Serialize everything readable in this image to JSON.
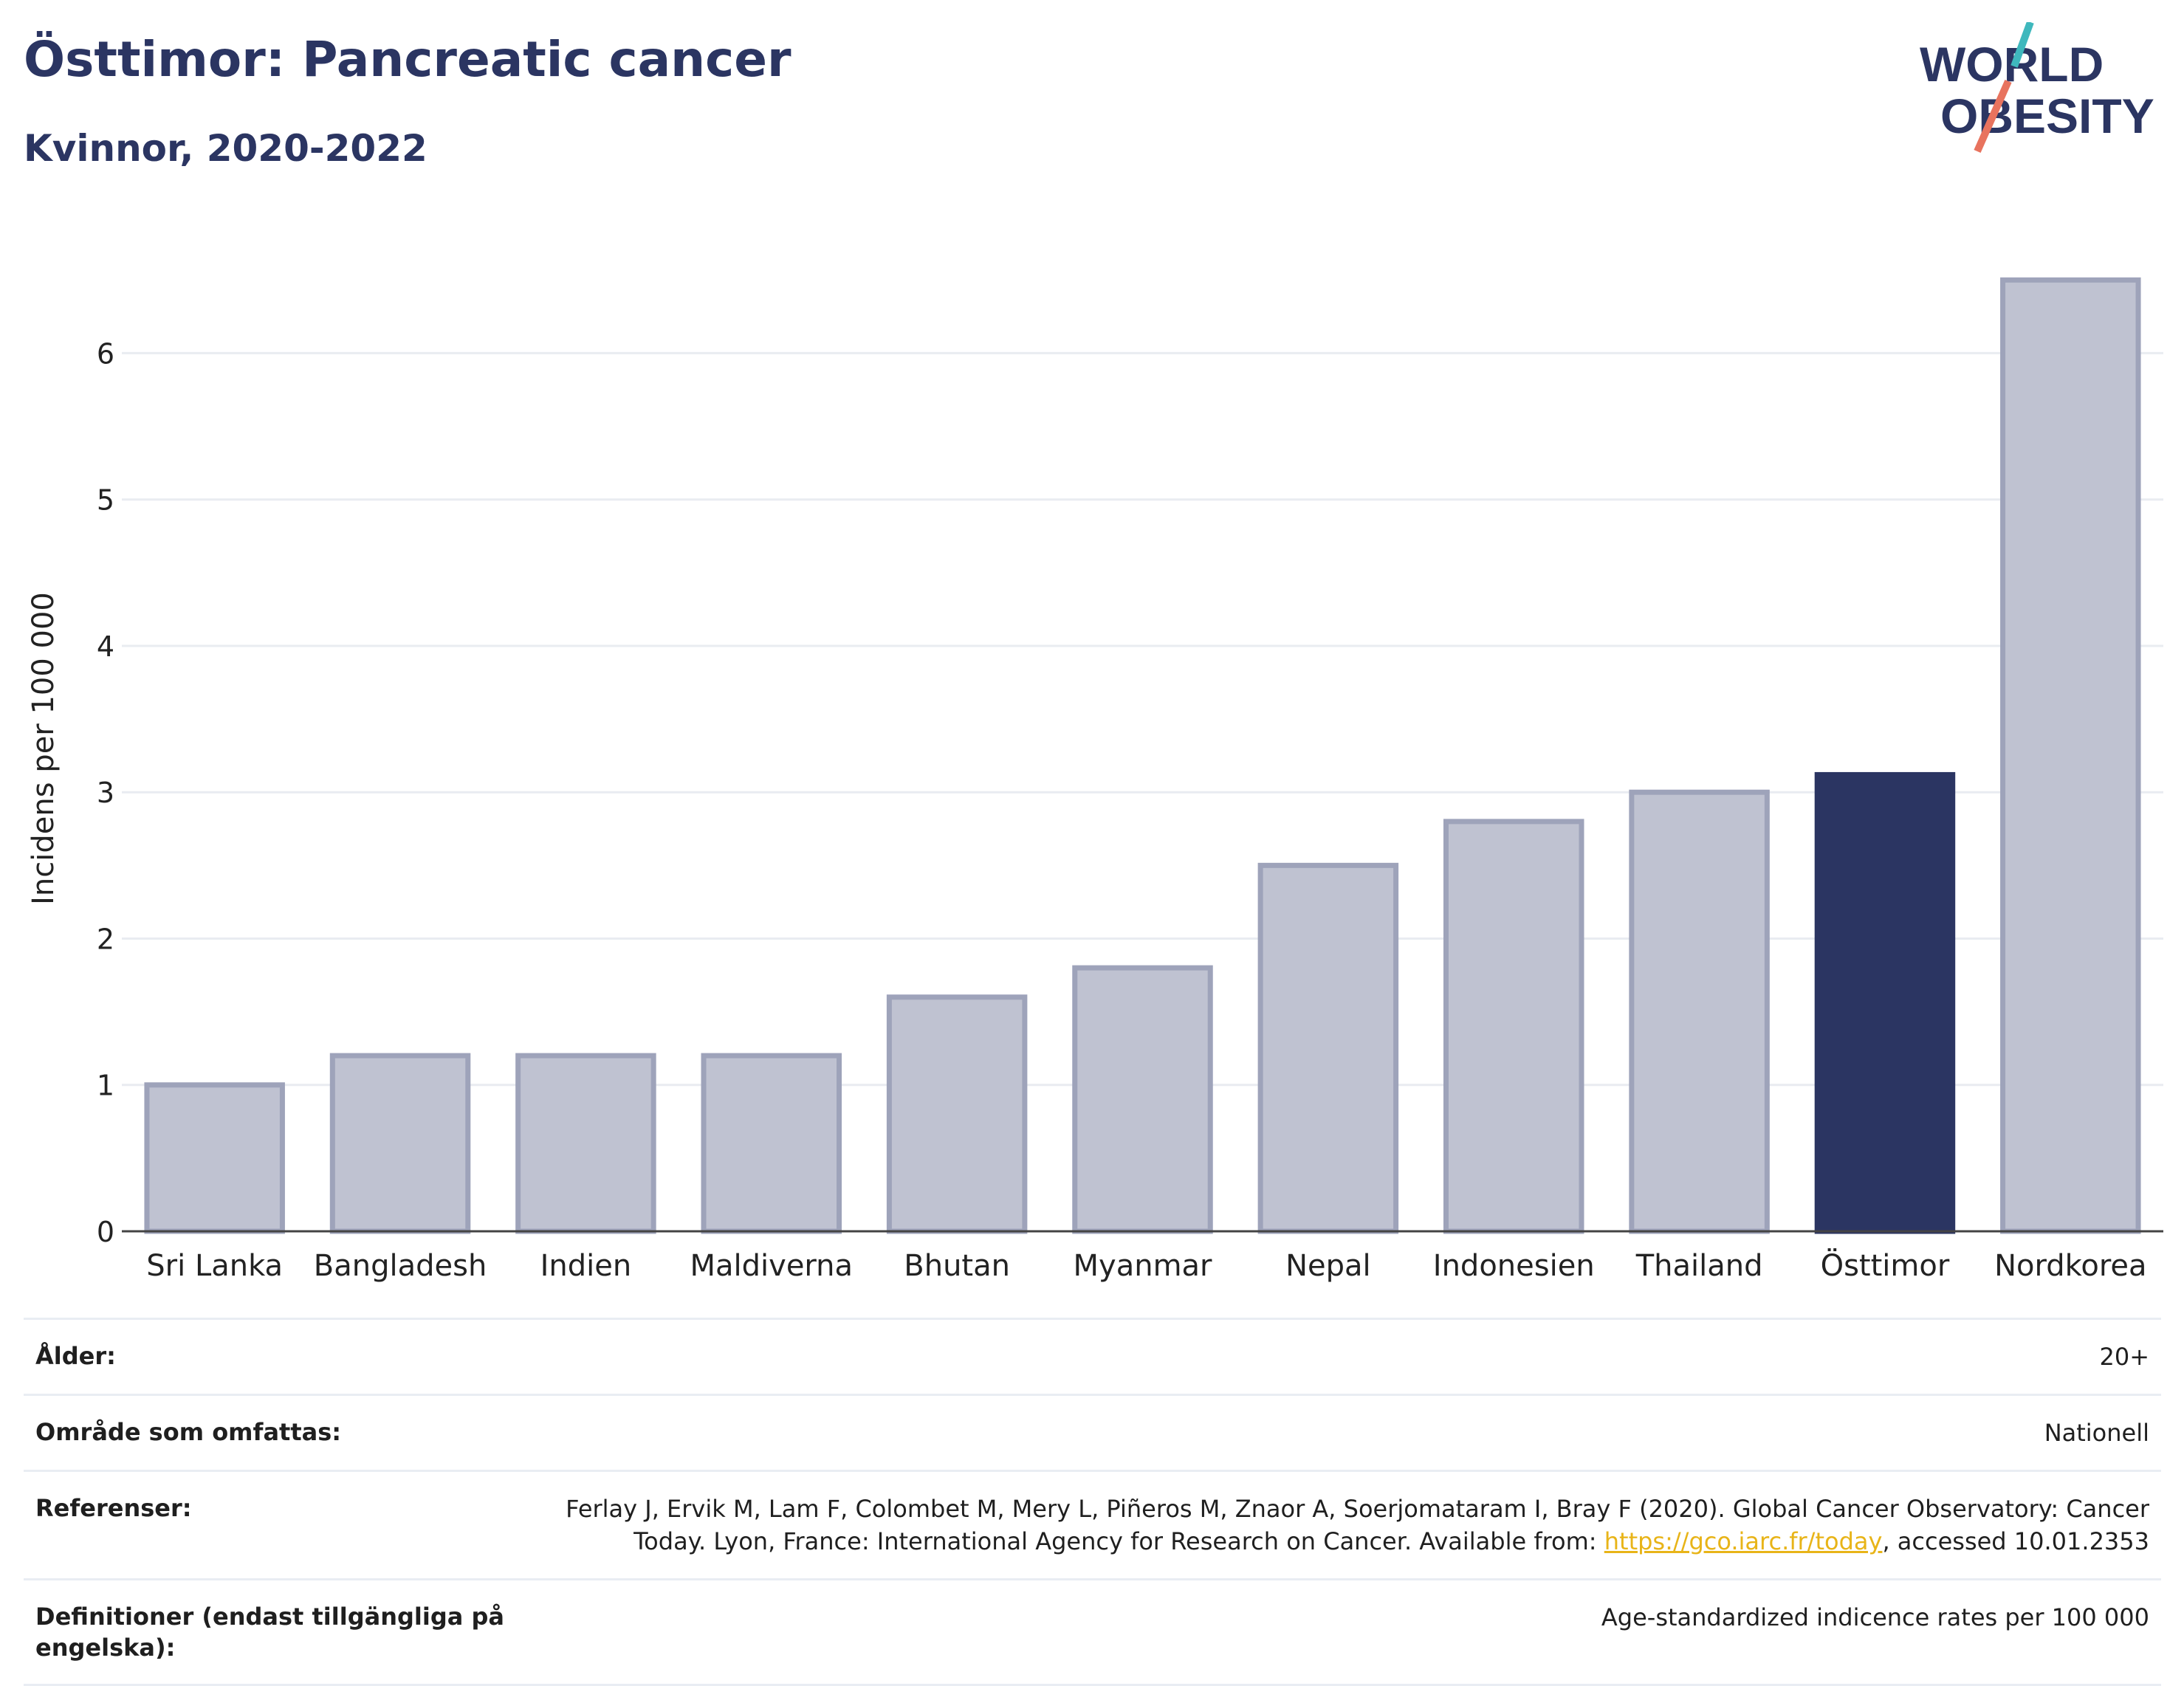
{
  "title": "Östtimor: Pancreatic cancer",
  "subtitle": "Kvinnor, 2020-2022",
  "logo": {
    "line1": "WORLD",
    "line2": "OBESITY"
  },
  "colors": {
    "highlight": "#2b3562",
    "bar_fill": "#bfc2d1",
    "bar_stroke": "#9ea3ba",
    "title": "#2b3562",
    "link": "#e8b418"
  },
  "chart_data": {
    "type": "bar",
    "categories": [
      "Sri Lanka",
      "Bangladesh",
      "Indien",
      "Maldiverna",
      "Bhutan",
      "Myanmar",
      "Nepal",
      "Indonesien",
      "Thailand",
      "Östtimor",
      "Nordkorea"
    ],
    "values": [
      1.0,
      1.2,
      1.2,
      1.2,
      1.6,
      1.8,
      2.5,
      2.8,
      3.0,
      3.12,
      6.5
    ],
    "highlight": "Östtimor",
    "ylabel": "Incidens per 100 000",
    "yticks": [
      0,
      1,
      2,
      3,
      4,
      5,
      6
    ],
    "ylim": [
      0,
      6.9
    ],
    "grid": true
  },
  "meta": [
    {
      "label": "Ålder:",
      "value": "20+"
    },
    {
      "label": "Område som omfattas:",
      "value": "Nationell"
    },
    {
      "label": "Referenser:",
      "value_pre": "Ferlay J, Ervik M, Lam F, Colombet M, Mery L, Piñeros M, Znaor A, Soerjomataram I, Bray F (2020). Global Cancer Observatory: Cancer Today. Lyon, France: International Agency for Research on Cancer. Available from: ",
      "link": "https://gco.iarc.fr/today",
      "value_post": ", accessed 10.01.2353"
    },
    {
      "label": "Definitioner (endast tillgängliga på engelska):",
      "value": "Age-standardized indicence rates per 100 000"
    }
  ]
}
